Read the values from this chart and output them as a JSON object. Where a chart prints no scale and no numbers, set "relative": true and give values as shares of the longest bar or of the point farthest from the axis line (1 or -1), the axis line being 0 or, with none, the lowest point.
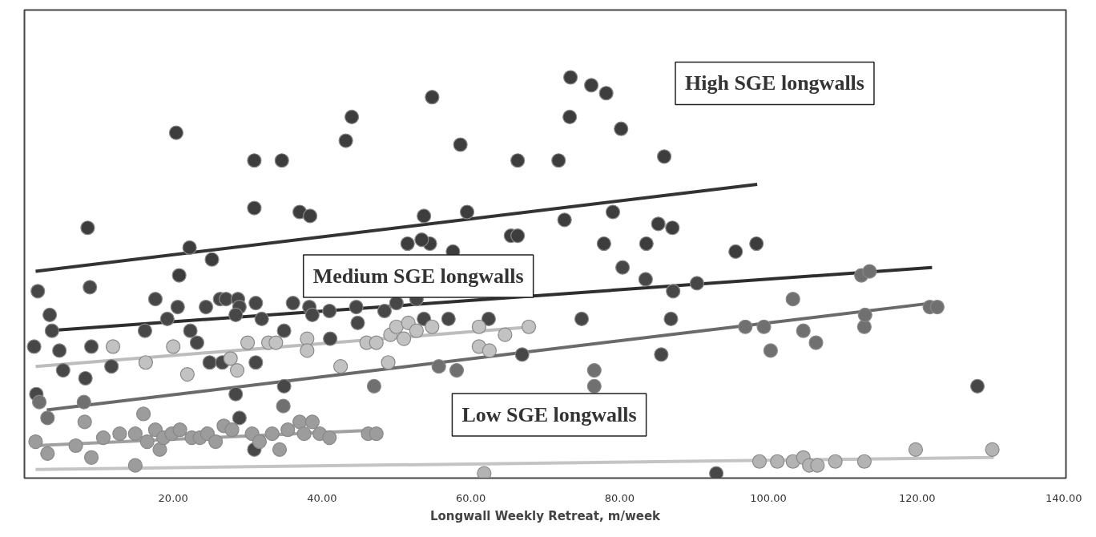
{
  "chart_data": {
    "type": "scatter",
    "relative": true,
    "xlabel": "Longwall Weekly Retreat, m/week",
    "xlim": [
      0,
      140
    ],
    "xticks": [
      {
        "value": 20,
        "label": "20.00"
      },
      {
        "value": 40,
        "label": "40.00"
      },
      {
        "value": 60,
        "label": "60.00"
      },
      {
        "value": 80,
        "label": "80.00"
      },
      {
        "value": 100,
        "label": "100.00"
      },
      {
        "value": 120,
        "label": "120.00"
      },
      {
        "value": 140,
        "label": "140.00"
      }
    ],
    "tick_labels": "x",
    "grid": false,
    "marker": "circle",
    "annotations": [
      "High SGE longwalls",
      "Medium SGE longwalls",
      "Low SGE longwalls"
    ],
    "series": [
      {
        "color": "#3d3d3d",
        "x": [
          20.4,
          44.0,
          54.8,
          73.4,
          76.2,
          78.2,
          73.3,
          80.2,
          43.2,
          58.6,
          30.9,
          34.6,
          66.3,
          71.8,
          86.0,
          30.9,
          37.0,
          38.4,
          53.7,
          59.5,
          54.5,
          57.6,
          51.5,
          53.4,
          65.4,
          66.3,
          72.6,
          79.1,
          85.2,
          87.1,
          77.9,
          83.6,
          98.4,
          95.6,
          8.5,
          22.2,
          20.8,
          25.2
        ],
        "values": [
          0.86,
          0.9,
          0.95,
          1.0,
          0.98,
          0.96,
          0.9,
          0.87,
          0.84,
          0.83,
          0.79,
          0.79,
          0.79,
          0.79,
          0.8,
          0.67,
          0.66,
          0.65,
          0.65,
          0.66,
          0.58,
          0.56,
          0.58,
          0.59,
          0.6,
          0.6,
          0.64,
          0.66,
          0.63,
          0.62,
          0.58,
          0.58,
          0.58,
          0.56,
          0.62,
          0.57,
          0.5,
          0.54
        ]
      },
      {
        "color": "#474747",
        "x": [
          1.8,
          8.8,
          17.6,
          20.6,
          24.4,
          26.3,
          27.1,
          28.7,
          28.9,
          28.4,
          31.1,
          31.9,
          36.1,
          38.3,
          38.7,
          41.0,
          44.6,
          44.8,
          48.4,
          52.7,
          53.7,
          50.0,
          83.5,
          80.4,
          87.2,
          90.4,
          3.4,
          3.7,
          1.3,
          19.2,
          16.2,
          22.3,
          41.1,
          24.9,
          26.6,
          23.2,
          9.0,
          11.7,
          4.7,
          31.1,
          34.9,
          57.0,
          62.4,
          66.9,
          74.9,
          86.9,
          85.6,
          28.4,
          128.1,
          93.0,
          34.9,
          1.6,
          5.2,
          8.2,
          28.9,
          30.9
        ],
        "values": [
          0.46,
          0.47,
          0.44,
          0.42,
          0.42,
          0.44,
          0.44,
          0.44,
          0.42,
          0.4,
          0.43,
          0.39,
          0.43,
          0.42,
          0.4,
          0.41,
          0.42,
          0.38,
          0.41,
          0.44,
          0.39,
          0.43,
          0.49,
          0.52,
          0.46,
          0.48,
          0.4,
          0.36,
          0.32,
          0.39,
          0.36,
          0.36,
          0.34,
          0.28,
          0.28,
          0.33,
          0.32,
          0.27,
          0.31,
          0.28,
          0.36,
          0.39,
          0.39,
          0.3,
          0.39,
          0.39,
          0.3,
          0.2,
          0.22,
          0.0,
          0.22,
          0.2,
          0.26,
          0.24,
          0.14,
          0.06
        ]
      },
      {
        "color": "#c2c2c2",
        "x": [
          11.9,
          16.3,
          20.0,
          21.9,
          27.7,
          28.6,
          30.0,
          32.8,
          33.8,
          38.0,
          38.0,
          42.5,
          46.0,
          47.3,
          49.2,
          50.0,
          51.0,
          51.6,
          52.7,
          54.8,
          48.9,
          61.1,
          61.1,
          62.5,
          64.6,
          67.8
        ],
        "values": [
          0.32,
          0.28,
          0.32,
          0.25,
          0.29,
          0.26,
          0.33,
          0.33,
          0.33,
          0.34,
          0.31,
          0.27,
          0.33,
          0.33,
          0.35,
          0.37,
          0.34,
          0.38,
          0.36,
          0.37,
          0.28,
          0.37,
          0.32,
          0.31,
          0.35,
          0.37
        ]
      },
      {
        "color": "#707070",
        "x": [
          47.0,
          55.7,
          58.1,
          76.6,
          76.6,
          96.9,
          99.4,
          100.3,
          103.3,
          104.7,
          106.4,
          112.9,
          113.0,
          121.7,
          122.7,
          112.5,
          113.6,
          34.8,
          2.0,
          3.1,
          8.0
        ],
        "values": [
          0.22,
          0.27,
          0.26,
          0.26,
          0.22,
          0.37,
          0.37,
          0.31,
          0.44,
          0.36,
          0.33,
          0.37,
          0.4,
          0.42,
          0.42,
          0.5,
          0.51,
          0.17,
          0.18,
          0.14,
          0.18
        ]
      },
      {
        "color": "#9c9c9c",
        "x": [
          6.9,
          9.0,
          10.6,
          12.8,
          14.9,
          16.0,
          16.5,
          17.6,
          18.2,
          18.7,
          19.8,
          20.9,
          22.5,
          23.6,
          24.6,
          25.7,
          26.8,
          27.9,
          30.6,
          31.6,
          33.3,
          34.3,
          35.4,
          37.0,
          37.6,
          38.7,
          39.7,
          41.0,
          46.2,
          47.3,
          14.9,
          1.5,
          3.1,
          8.1
        ],
        "values": [
          0.07,
          0.04,
          0.09,
          0.1,
          0.1,
          0.15,
          0.08,
          0.11,
          0.06,
          0.09,
          0.1,
          0.11,
          0.09,
          0.09,
          0.1,
          0.08,
          0.12,
          0.11,
          0.1,
          0.08,
          0.1,
          0.06,
          0.11,
          0.13,
          0.1,
          0.13,
          0.1,
          0.09,
          0.1,
          0.1,
          0.02,
          0.08,
          0.05,
          0.13
        ]
      },
      {
        "color": "#b3b3b3",
        "x": [
          61.8,
          98.8,
          101.2,
          103.3,
          104.7,
          105.5,
          106.6,
          109.0,
          112.9,
          119.8,
          130.1
        ],
        "values": [
          0.0,
          0.03,
          0.03,
          0.03,
          0.04,
          0.02,
          0.02,
          0.03,
          0.03,
          0.06,
          0.06
        ]
      },
      {
        "type": "line",
        "marker": "none",
        "color": "#333333",
        "x": [
          1.5,
          98.5
        ],
        "values": [
          0.51,
          0.73
        ]
      },
      {
        "type": "line",
        "marker": "none",
        "color": "#2e2e2e",
        "x": [
          3,
          122
        ],
        "values": [
          0.36,
          0.52
        ]
      },
      {
        "type": "line",
        "marker": "none",
        "color": "#bdbdbd",
        "x": [
          1.5,
          68.3
        ],
        "values": [
          0.27,
          0.37
        ]
      },
      {
        "type": "line",
        "marker": "none",
        "color": "#6a6a6a",
        "x": [
          3,
          122
        ],
        "values": [
          0.16,
          0.43
        ]
      },
      {
        "type": "line",
        "marker": "none",
        "color": "#a0a0a0",
        "x": [
          1.5,
          48
        ],
        "values": [
          0.07,
          0.11
        ]
      },
      {
        "type": "line",
        "marker": "none",
        "color": "#c4c4c4",
        "x": [
          1.5,
          130.3
        ],
        "values": [
          0.01,
          0.04
        ]
      }
    ]
  }
}
